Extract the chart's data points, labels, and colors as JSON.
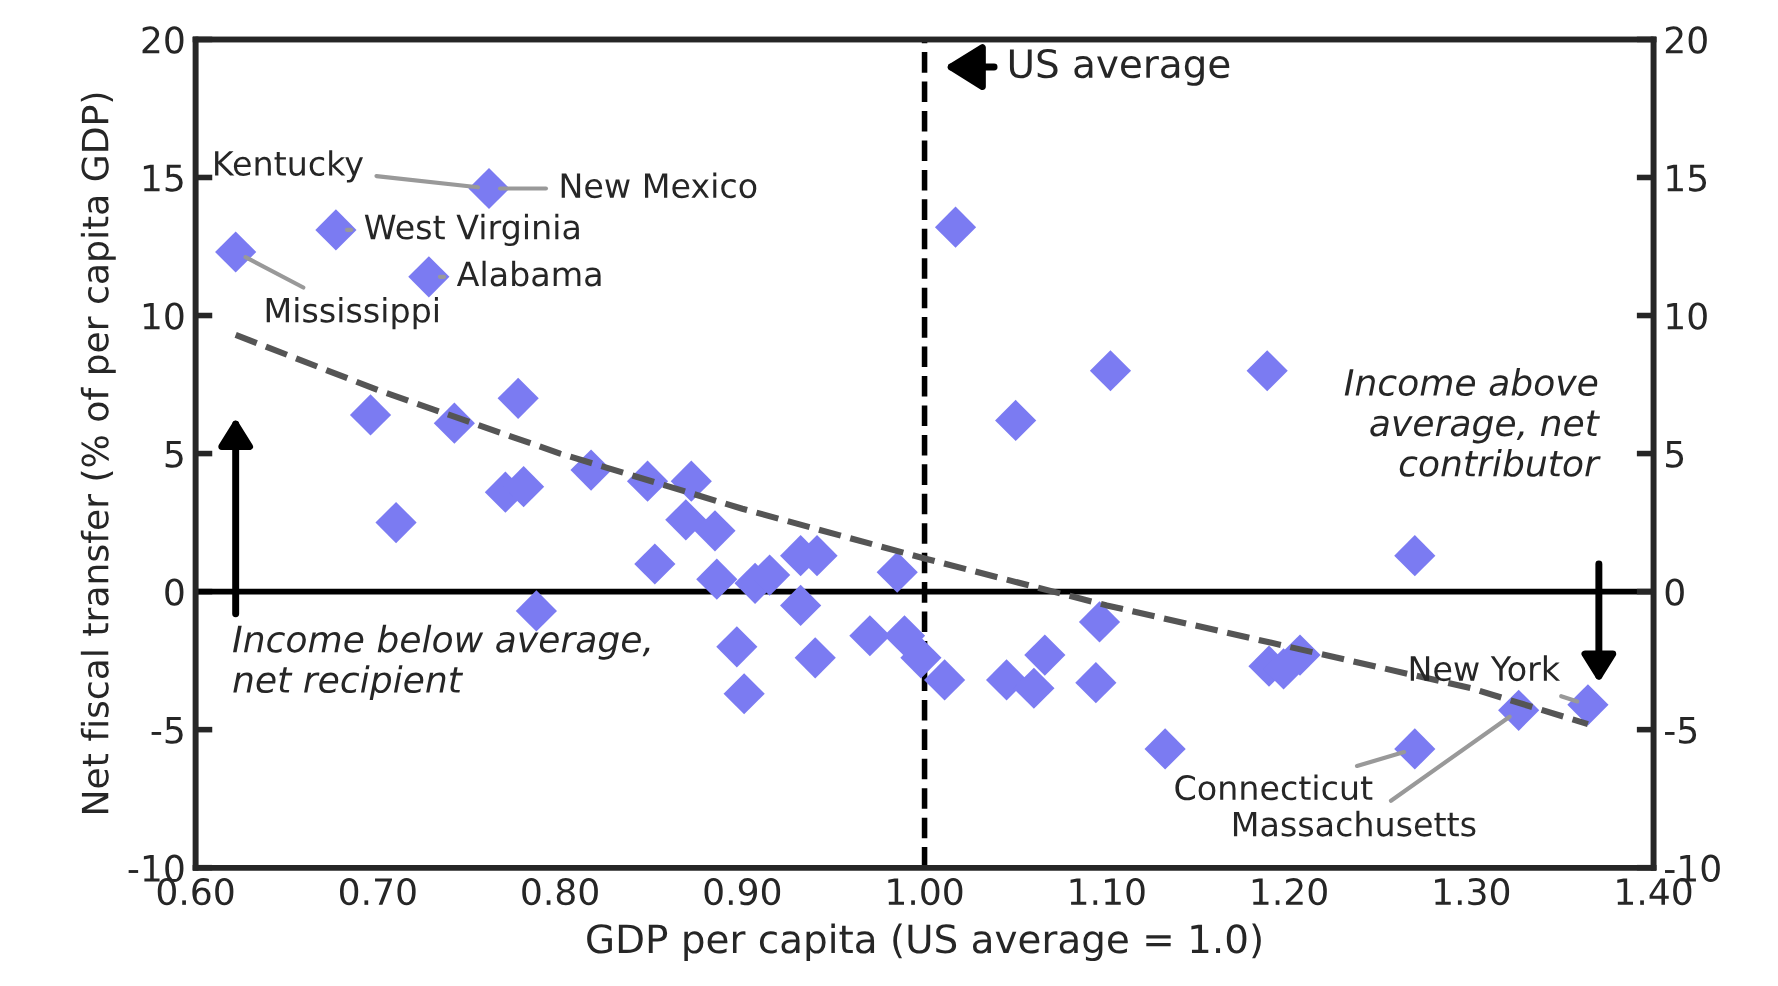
{
  "chart_data": {
    "type": "scatter",
    "xlabel": "GDP per capita (US average = 1.0)",
    "ylabel": "Net fiscal transfer (% of per capita GDP)",
    "xlim": [
      0.6,
      1.4
    ],
    "xticks": [
      {
        "value": 0.6,
        "label": "0.60"
      },
      {
        "value": 0.7,
        "label": "0.70"
      },
      {
        "value": 0.8,
        "label": "0.80"
      },
      {
        "value": 0.9,
        "label": "0.90"
      },
      {
        "value": 1.0,
        "label": "1.00"
      },
      {
        "value": 1.1,
        "label": "1.10"
      },
      {
        "value": 1.2,
        "label": "1.20"
      },
      {
        "value": 1.3,
        "label": "1.30"
      },
      {
        "value": 1.4,
        "label": "1.40"
      }
    ],
    "ylim": [
      -10,
      20
    ],
    "yticks": [
      -10,
      -5,
      0,
      5,
      10,
      15,
      20
    ],
    "y2lim": [
      -10,
      20
    ],
    "y2ticks": [
      -10,
      -5,
      0,
      5,
      10,
      15,
      20
    ],
    "grid": false,
    "marker": "diamond",
    "series": [
      {
        "color": "#7b7bf2",
        "x": [
          0.622,
          0.677,
          0.761,
          0.728,
          1.017,
          1.05,
          1.102,
          1.188,
          0.696,
          0.742,
          0.777,
          0.71,
          0.77,
          0.78,
          0.817,
          0.848,
          0.872,
          0.869,
          0.885,
          0.852,
          0.886,
          0.907,
          0.915,
          0.932,
          0.941,
          0.985,
          0.787,
          0.932,
          0.897,
          0.94,
          0.901,
          0.97,
          0.989,
          0.998,
          1.011,
          1.045,
          1.06,
          1.066,
          1.094,
          1.096,
          1.132,
          1.189,
          1.197,
          1.206,
          1.269,
          1.269,
          1.326,
          1.364
        ],
        "values": [
          12.3,
          13.1,
          14.6,
          11.4,
          13.2,
          6.2,
          8.0,
          8.0,
          6.4,
          6.1,
          7.0,
          2.5,
          3.6,
          3.8,
          4.4,
          4.0,
          4.0,
          2.6,
          2.2,
          1.0,
          0.45,
          0.3,
          0.6,
          1.3,
          1.3,
          0.7,
          -0.7,
          -0.5,
          -2.0,
          -2.4,
          -3.7,
          -1.6,
          -1.6,
          -2.4,
          -3.2,
          -3.2,
          -3.5,
          -2.3,
          -3.3,
          -1.1,
          -5.7,
          -2.7,
          -2.8,
          -2.3,
          1.3,
          -5.7,
          -4.3,
          -4.1
        ]
      },
      {
        "type": "line",
        "color": "#555555",
        "line_style": "dashed",
        "marker": "none",
        "x": [
          0.622,
          0.7,
          0.8,
          0.9,
          1.0,
          1.1,
          1.2,
          1.3,
          1.364
        ],
        "values": [
          9.3,
          7.3,
          5.0,
          3.0,
          1.2,
          -0.5,
          -2.0,
          -3.5,
          -4.8
        ]
      }
    ],
    "ref_lines": [
      {
        "axis": "x",
        "value": 1.0,
        "label": "US average",
        "color": "#000000",
        "line_style": "dashed"
      },
      {
        "axis": "y",
        "value": 0,
        "color": "#000000",
        "line_style": "solid"
      }
    ],
    "annotations": [
      {
        "text": "Kentucky",
        "x": 0.761,
        "y": 14.6
      },
      {
        "text": "New Mexico",
        "x": 0.761,
        "y": 14.6
      },
      {
        "text": "West Virginia",
        "x": 0.677,
        "y": 13.1
      },
      {
        "text": "Alabama",
        "x": 0.728,
        "y": 11.4
      },
      {
        "text": "Mississippi",
        "x": 0.622,
        "y": 12.3
      },
      {
        "text": "New York",
        "x": 1.364,
        "y": -4.1
      },
      {
        "text": "Connecticut",
        "x": 1.269,
        "y": -5.7
      },
      {
        "text": "Massachusetts",
        "x": 1.326,
        "y": -4.3
      },
      "Income below average, net recipient",
      "Income above average, net contributor"
    ]
  }
}
